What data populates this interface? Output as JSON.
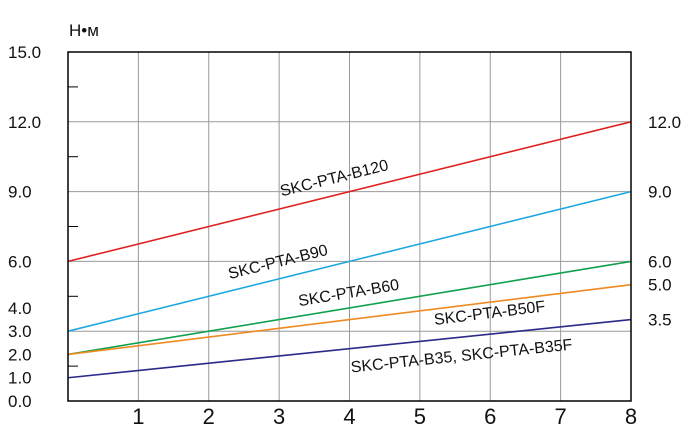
{
  "chart_data": {
    "type": "line",
    "unit_label": "Н•м",
    "x_ticks": [
      "1",
      "2",
      "3",
      "4",
      "5",
      "6",
      "7",
      "8"
    ],
    "xlim": [
      0,
      8
    ],
    "y_ticks_left": [
      {
        "label": "15.0",
        "value": 15.0
      },
      {
        "label": "12.0",
        "value": 12.0
      },
      {
        "label": "9.0",
        "value": 9.0
      },
      {
        "label": "6.0",
        "value": 6.0
      },
      {
        "label": "4.0",
        "value": 4.0
      },
      {
        "label": "3.0",
        "value": 3.0
      },
      {
        "label": "2.0",
        "value": 2.0
      },
      {
        "label": "1.0",
        "value": 1.0
      },
      {
        "label": "0.0",
        "value": 0.0
      }
    ],
    "y_ticks_right": [
      {
        "label": "12.0",
        "value": 12.0
      },
      {
        "label": "9.0",
        "value": 9.0
      },
      {
        "label": "6.0",
        "value": 6.0
      },
      {
        "label": "5.0",
        "value": 5.0
      },
      {
        "label": "3.5",
        "value": 3.5
      }
    ],
    "grid": true,
    "series": [
      {
        "name": "SKC-PTA-B120",
        "color": "#e02020",
        "x": [
          0,
          8
        ],
        "y": [
          6.0,
          12.0
        ]
      },
      {
        "name": "SKC-PTA-B90",
        "color": "#1ea8e0",
        "x": [
          0,
          8
        ],
        "y": [
          3.0,
          9.0
        ]
      },
      {
        "name": "SKC-PTA-B60",
        "color": "#10a050",
        "x": [
          0,
          8
        ],
        "y": [
          2.0,
          6.0
        ]
      },
      {
        "name": "SKC-PTA-B50F",
        "color": "#f08a20",
        "x": [
          0,
          8
        ],
        "y": [
          2.0,
          5.0
        ]
      },
      {
        "name": "SKC-PTA-B35, SKC-PTA-B35F",
        "color": "#2a2a8a",
        "x": [
          0,
          8
        ],
        "y": [
          1.0,
          3.5
        ]
      }
    ]
  }
}
